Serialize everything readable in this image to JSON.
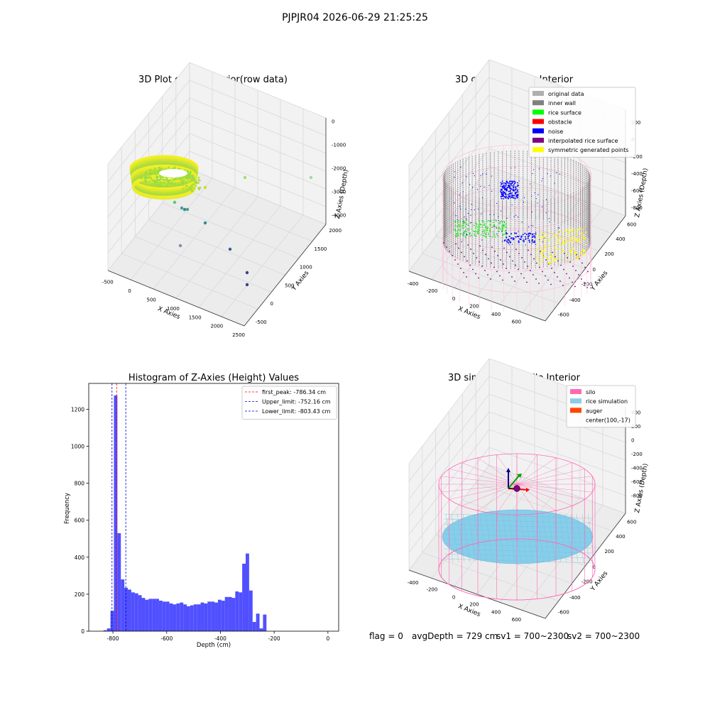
{
  "figure": {
    "suptitle": "PJPJR04 2026-06-29 21:25:25",
    "footer": {
      "flag": "flag = 0",
      "avg_depth": "avgDepth = 729 cm",
      "sv1": "sv1 = 700~2300",
      "sv2": "sv2 = 700~2300"
    }
  },
  "colors": {
    "hist_bar": "#5050ff",
    "first_peak_line": "#ff0000",
    "limit_lines": "#0000cc",
    "pane": "#f2f2f2",
    "grid": "#d9d9d9",
    "silo_wire": "#ff69b4",
    "inner_wall": "#808080",
    "rice_surface": "#00ee00",
    "noise": "#0000ff",
    "interpolated": "#800080",
    "symmetric": "#ffff00",
    "rice_sim": "#87ceeb",
    "auger": "#ff4500"
  },
  "chart_data": [
    {
      "type": "scatter",
      "subtype": "3d",
      "title": "3D Plot of Silo Interior(row data)",
      "xlabel": "X Axies",
      "ylabel": "Y Axies",
      "zlabel": "Z Axies (Depth)",
      "xticks": [
        "-500",
        "0",
        "500",
        "1000",
        "1500",
        "2000",
        "2500"
      ],
      "yticks": [
        "-500",
        "0",
        "500",
        "1000",
        "1500",
        "2000"
      ],
      "zticks": [
        "0",
        "-1000",
        "-2000",
        "-3000",
        "-4000"
      ],
      "xlim": [
        -600,
        2500
      ],
      "ylim": [
        -600,
        2200
      ],
      "zlim": [
        -4300,
        200
      ],
      "grid": true,
      "outliers": [
        {
          "x": 2300,
          "y": 1850,
          "z": -2200
        },
        {
          "x": 1500,
          "y": 1900,
          "z": -2050
        },
        {
          "x": 600,
          "y": 1950,
          "z": -2100
        },
        {
          "x": 250,
          "y": 700,
          "z": -2500
        },
        {
          "x": 200,
          "y": 300,
          "z": -2900
        },
        {
          "x": 300,
          "y": 1300,
          "z": -3300
        },
        {
          "x": 650,
          "y": 1600,
          "z": -3700
        },
        {
          "x": 1400,
          "y": 800,
          "z": -3600
        },
        {
          "x": 1700,
          "y": -150,
          "z": -3850
        },
        {
          "x": 2050,
          "y": -400,
          "z": -3650
        },
        {
          "x": 1700,
          "y": -450,
          "z": -3900
        },
        {
          "x": -200,
          "y": 500,
          "z": -3000
        }
      ]
    },
    {
      "type": "scatter",
      "subtype": "3d",
      "title": "3D classify of Silo Interior",
      "xlabel": "X Axies",
      "ylabel": "Y Axies",
      "zlabel": "Z Axies (Depth)",
      "xticks": [
        "-400",
        "-200",
        "0",
        "200",
        "400",
        "600"
      ],
      "yticks": [
        "-600",
        "-400",
        "-200",
        "0",
        "200",
        "400",
        "600"
      ],
      "zticks": [
        "200",
        "0",
        "-200",
        "-400",
        "-600",
        "-800"
      ],
      "xlim": [
        -550,
        750
      ],
      "ylim": [
        -650,
        700
      ],
      "zlim": [
        -950,
        300
      ],
      "grid": true,
      "legend": {
        "placement": "upper right",
        "entries": [
          {
            "label": "original data",
            "color": "#b0b0b0"
          },
          {
            "label": "inner wall",
            "color": "#808080"
          },
          {
            "label": "rice surface",
            "color": "#00ff00"
          },
          {
            "label": "obstacle",
            "color": "#ff0000"
          },
          {
            "label": "noise",
            "color": "#0000ff"
          },
          {
            "label": "interpolated rice surface",
            "color": "#800080"
          },
          {
            "label": "symmetric generated points",
            "color": "#ffff00"
          }
        ]
      }
    },
    {
      "type": "bar",
      "subtype": "histogram",
      "title": "Histogram of Z-Axies (Height) Values",
      "xlabel": "Depth (cm)",
      "ylabel": "Frequency",
      "xlim": [
        -890,
        40
      ],
      "ylim": [
        0,
        1340
      ],
      "xticks": [
        -800,
        -600,
        -400,
        -200,
        0
      ],
      "yticks": [
        0,
        200,
        400,
        600,
        800,
        1000,
        1200
      ],
      "grid": false,
      "bin_width": 12.9,
      "bins_start": -835,
      "values": [
        5,
        15,
        110,
        1275,
        530,
        280,
        235,
        225,
        210,
        205,
        195,
        180,
        170,
        175,
        175,
        175,
        165,
        160,
        160,
        150,
        145,
        150,
        155,
        145,
        135,
        140,
        145,
        145,
        155,
        150,
        160,
        160,
        155,
        170,
        165,
        185,
        185,
        180,
        215,
        210,
        365,
        420,
        220,
        50,
        95,
        15,
        90
      ],
      "vlines": [
        {
          "label": "first_peak: -786.34 cm",
          "x": -786.34,
          "color": "#ff0000"
        },
        {
          "label": "Upper_limit: -752.16 cm",
          "x": -752.16,
          "color": "#0000cc"
        },
        {
          "label": "Lower_limit: -803.43 cm",
          "x": -803.43,
          "color": "#0000cc"
        }
      ],
      "legend": {
        "placement": "upper right"
      }
    },
    {
      "type": "scatter",
      "subtype": "3d-surface",
      "title": "3D simulation of Silo Interior",
      "xlabel": "X Axies",
      "ylabel": "Y Axies",
      "zlabel": "Z Axies (Depth)",
      "xticks": [
        "-400",
        "-200",
        "0",
        "200",
        "400",
        "600"
      ],
      "yticks": [
        "-600",
        "-400",
        "-200",
        "0",
        "200",
        "400",
        "600"
      ],
      "zticks": [
        "400",
        "200",
        "0",
        "-200",
        "-400",
        "-600",
        "-800"
      ],
      "xlim": [
        -550,
        750
      ],
      "ylim": [
        -650,
        700
      ],
      "zlim": [
        -950,
        450
      ],
      "grid": true,
      "legend": {
        "placement": "upper right",
        "entries": [
          {
            "label": "silo",
            "color": "#ff69b4"
          },
          {
            "label": "rice simulation",
            "color": "#87ceeb"
          },
          {
            "label": "auger",
            "color": "#ff4500"
          },
          {
            "label": "center(100,-17)",
            "color": ""
          }
        ]
      }
    }
  ]
}
